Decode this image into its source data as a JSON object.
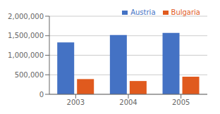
{
  "chart_data": {
    "type": "bar",
    "categories": [
      "2003",
      "2004",
      "2005"
    ],
    "series": [
      {
        "name": "Austria",
        "color": "#4472C4",
        "values": [
          1330000,
          1520000,
          1570000
        ]
      },
      {
        "name": "Bulgaria",
        "color": "#E05A1E",
        "values": [
          390000,
          340000,
          450000
        ]
      }
    ],
    "ylim": [
      0,
      2000000
    ],
    "yticks": [
      0,
      {
        "value": 500000,
        "label": "500,000"
      },
      {
        "value": 1000000,
        "label": "1,000,000"
      },
      {
        "value": 1500000,
        "label": "1,500,000"
      },
      {
        "value": 2000000,
        "label": "2,000,000"
      }
    ],
    "grid": true,
    "legend": "upper right"
  }
}
